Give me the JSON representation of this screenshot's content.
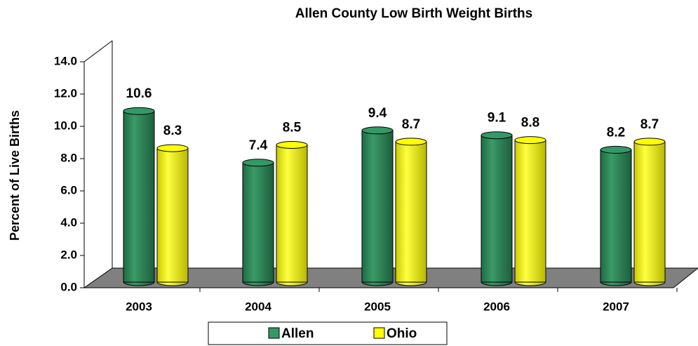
{
  "chart_data": {
    "type": "bar3d",
    "title": "Allen County Low Birth Weight Births",
    "y_label": "Percent of Live Births",
    "categories": [
      "2003",
      "2004",
      "2005",
      "2006",
      "2007"
    ],
    "series": [
      {
        "name": "Allen",
        "color": "#339966",
        "values": [
          10.6,
          7.4,
          9.4,
          9.1,
          8.2
        ]
      },
      {
        "name": "Ohio",
        "color": "#ffff00",
        "values": [
          8.3,
          8.5,
          8.7,
          8.8,
          8.7
        ]
      }
    ],
    "ylim": [
      0,
      14
    ],
    "yticks": [
      {
        "value": 0,
        "label": "0.0"
      },
      {
        "value": 2,
        "label": "2.0"
      },
      {
        "value": 4,
        "label": "4.0"
      },
      {
        "value": 6,
        "label": "6.0"
      },
      {
        "value": 8,
        "label": "8.0"
      },
      {
        "value": 10,
        "label": "10.0"
      },
      {
        "value": 12,
        "label": "12.0"
      },
      {
        "value": 14,
        "label": "14.0"
      }
    ],
    "legend": "bottom"
  }
}
